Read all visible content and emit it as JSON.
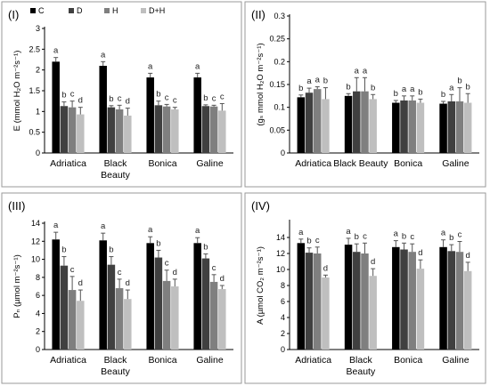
{
  "legend": [
    {
      "name": "C",
      "color": "#000000"
    },
    {
      "name": "D",
      "color": "#404040"
    },
    {
      "name": "H",
      "color": "#7f7f7f"
    },
    {
      "name": "D+H",
      "color": "#bfbfbf"
    }
  ],
  "chart_data": [
    {
      "type": "bar",
      "panel_label": "(I)",
      "ylabel": "E (mmol H₂O m⁻²s⁻¹)",
      "ylim": [
        0,
        3
      ],
      "yticks": [
        0,
        0.5,
        1,
        1.5,
        2,
        2.5,
        3
      ],
      "ytick_labels": [
        "0",
        "0.5",
        "1",
        "1.5",
        "2",
        "2.5",
        "3"
      ],
      "categories": [
        [
          "Adriatica"
        ],
        [
          "Black",
          "Beauty"
        ],
        [
          "Bonica"
        ],
        [
          "Galine"
        ]
      ],
      "series": [
        {
          "name": "C",
          "values": [
            2.2,
            2.1,
            1.82,
            1.82
          ],
          "errors": [
            0.1,
            0.1,
            0.1,
            0.1
          ],
          "letters": [
            "a",
            "a",
            "a",
            "a"
          ]
        },
        {
          "name": "D",
          "values": [
            1.13,
            1.1,
            1.15,
            1.13
          ],
          "errors": [
            0.1,
            0.04,
            0.1,
            0.03
          ],
          "letters": [
            "b",
            "b",
            "b",
            "b"
          ]
        },
        {
          "name": "H",
          "values": [
            1.1,
            1.05,
            1.12,
            1.12
          ],
          "errors": [
            0.15,
            0.1,
            0.05,
            0.03
          ],
          "letters": [
            "c",
            "c",
            "c",
            "c"
          ]
        },
        {
          "name": "D+H",
          "values": [
            0.93,
            0.9,
            1.05,
            1.02
          ],
          "errors": [
            0.17,
            0.18,
            0.05,
            0.17
          ],
          "letters": [
            "d",
            "d",
            "c",
            "c"
          ]
        }
      ]
    },
    {
      "type": "bar",
      "panel_label": "(II)",
      "ylabel": "(gₛ mmol H₂O m⁻²s⁻¹)",
      "ylim": [
        0,
        0.3
      ],
      "yticks": [
        0,
        0.05,
        0.1,
        0.15,
        0.2,
        0.25,
        0.3
      ],
      "ytick_labels": [
        "0",
        "0.05",
        "0.1",
        "0.15",
        "0.2",
        "0.25",
        "0.3"
      ],
      "categories": [
        [
          "Adriatica"
        ],
        [
          "Black Beauty"
        ],
        [
          "Bonica"
        ],
        [
          "Galine"
        ]
      ],
      "series": [
        {
          "name": "C",
          "values": [
            0.122,
            0.125,
            0.11,
            0.108
          ],
          "errors": [
            0.005,
            0.005,
            0.005,
            0.005
          ],
          "letters": [
            "b",
            "b",
            "b",
            "b"
          ]
        },
        {
          "name": "D",
          "values": [
            0.132,
            0.135,
            0.115,
            0.113
          ],
          "errors": [
            0.01,
            0.03,
            0.01,
            0.015
          ],
          "letters": [
            "a",
            "a",
            "a",
            "a"
          ]
        },
        {
          "name": "H",
          "values": [
            0.14,
            0.135,
            0.115,
            0.113
          ],
          "errors": [
            0.005,
            0.03,
            0.01,
            0.03
          ],
          "letters": [
            "a",
            "a",
            "a",
            "b"
          ]
        },
        {
          "name": "D+H",
          "values": [
            0.118,
            0.118,
            0.11,
            0.11
          ],
          "errors": [
            0.025,
            0.01,
            0.008,
            0.02
          ],
          "letters": [
            "b",
            "b",
            "b",
            "b"
          ]
        }
      ]
    },
    {
      "type": "bar",
      "panel_label": "(III)",
      "ylabel": "Pₙ (µmol m⁻²s⁻¹)",
      "ylim": [
        0,
        14
      ],
      "yticks": [
        0,
        2,
        4,
        6,
        8,
        10,
        12,
        14
      ],
      "ytick_labels": [
        "0",
        "2",
        "4",
        "6",
        "8",
        "10",
        "12",
        "14"
      ],
      "categories": [
        [
          "Adriatica"
        ],
        [
          "Black",
          "Beauty"
        ],
        [
          "Bonica"
        ],
        [
          "Galine"
        ]
      ],
      "series": [
        {
          "name": "C",
          "values": [
            12.2,
            12.1,
            11.8,
            11.8
          ],
          "errors": [
            0.8,
            0.8,
            0.7,
            0.6
          ],
          "letters": [
            "a",
            "a",
            "a",
            "a"
          ]
        },
        {
          "name": "D",
          "values": [
            9.3,
            9.4,
            10.2,
            10.1
          ],
          "errors": [
            1.0,
            0.9,
            0.8,
            0.5
          ],
          "letters": [
            "b",
            "b",
            "b",
            "b"
          ]
        },
        {
          "name": "H",
          "values": [
            6.6,
            6.8,
            7.6,
            7.5
          ],
          "errors": [
            1.5,
            1.0,
            1.2,
            0.8
          ],
          "letters": [
            "c",
            "c",
            "c",
            "c"
          ]
        },
        {
          "name": "D+H",
          "values": [
            5.4,
            5.6,
            7.0,
            6.7
          ],
          "errors": [
            1.2,
            1.0,
            0.8,
            0.4
          ],
          "letters": [
            "d",
            "d",
            "d",
            "d"
          ]
        }
      ]
    },
    {
      "type": "bar",
      "panel_label": "(IV)",
      "ylabel": "A (µmol CO₂ m⁻²s⁻¹)",
      "ylim": [
        0,
        16
      ],
      "yticks": [
        0,
        2,
        4,
        6,
        8,
        10,
        12,
        14
      ],
      "ytick_labels": [
        "0",
        "2",
        "4",
        "6",
        "8",
        "10",
        "12",
        "14"
      ],
      "categories": [
        [
          "Adriatica"
        ],
        [
          "Black",
          "Beauty"
        ],
        [
          "Bonica"
        ],
        [
          "Galine"
        ]
      ],
      "series": [
        {
          "name": "C",
          "values": [
            13.3,
            13.1,
            12.8,
            12.8
          ],
          "errors": [
            0.5,
            0.8,
            0.8,
            0.9
          ],
          "letters": [
            "a",
            "a",
            "a",
            "a"
          ]
        },
        {
          "name": "D",
          "values": [
            12.1,
            12.2,
            12.5,
            12.3
          ],
          "errors": [
            0.6,
            1.0,
            0.8,
            0.8
          ],
          "letters": [
            "b",
            "b",
            "b",
            "b"
          ]
        },
        {
          "name": "H",
          "values": [
            12.0,
            12.0,
            12.2,
            12.2
          ],
          "errors": [
            0.8,
            1.3,
            1.0,
            1.3
          ],
          "letters": [
            "c",
            "c",
            "c",
            "c"
          ]
        },
        {
          "name": "D+H",
          "values": [
            9.0,
            9.2,
            10.1,
            9.8
          ],
          "errors": [
            0.3,
            0.9,
            1.1,
            1.1
          ],
          "letters": [
            "d",
            "d",
            "d",
            "d"
          ]
        }
      ]
    }
  ]
}
